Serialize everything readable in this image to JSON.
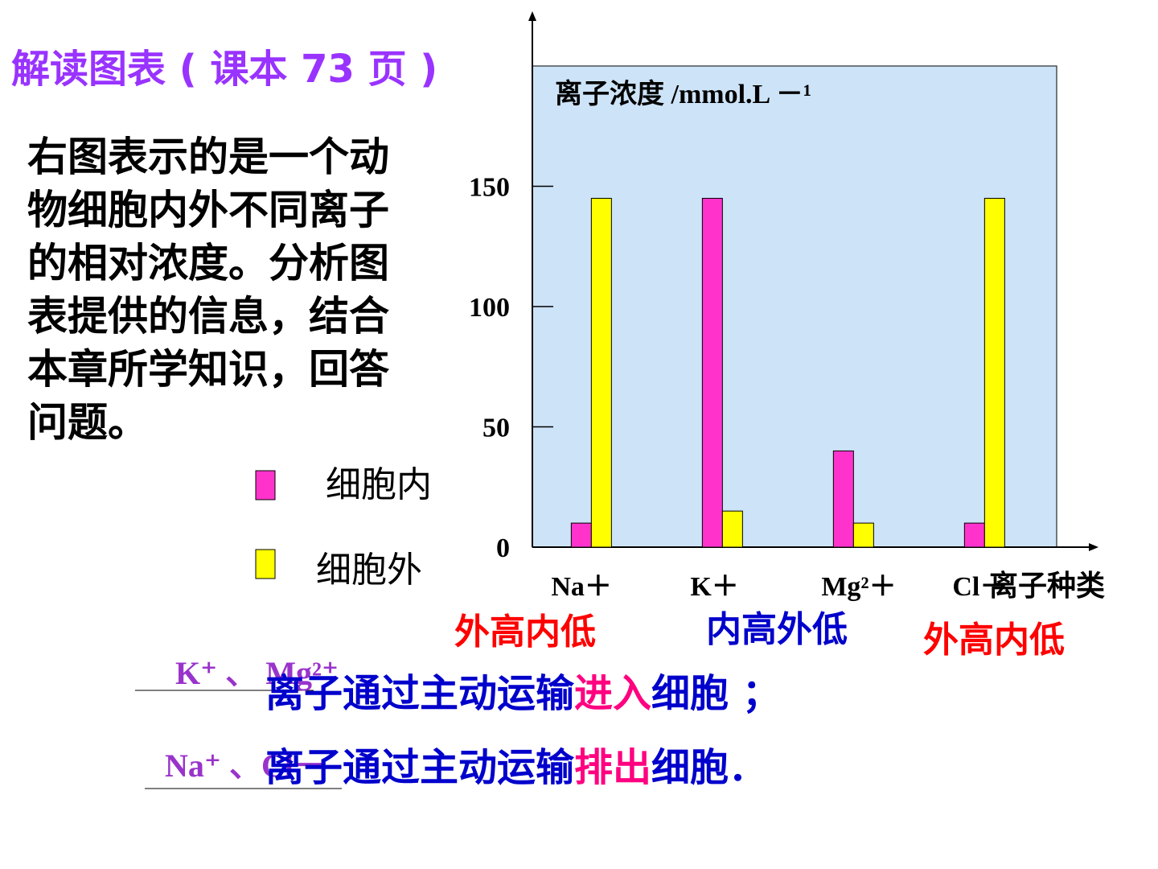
{
  "header": {
    "title": "解读图表 ( 课本 73 页 )"
  },
  "intro": [
    "右图表示的是一个动",
    "物细胞内外不同离子",
    "的相对浓度。分析图",
    "表提供的信息，结合",
    "本章所学知识，回答",
    "问题。"
  ],
  "chart_data": {
    "type": "bar",
    "y_label": "离子浓度 /mmol.L －¹",
    "x_label": "离子种类",
    "categories": [
      "Na＋",
      "K＋",
      "Mg²＋",
      "Cl－"
    ],
    "series": [
      {
        "name": "细胞内",
        "color": "#ff33cc",
        "values": [
          10,
          145,
          40,
          10
        ]
      },
      {
        "name": "细胞外",
        "color": "#ffff00",
        "values": [
          145,
          15,
          10,
          145
        ]
      }
    ],
    "ylim": [
      0,
      200
    ],
    "yticks": [
      0,
      50,
      100,
      150
    ],
    "annotations": [
      {
        "text": "外高内低",
        "color": "#ff0000"
      },
      {
        "text": "内高外低",
        "color": "#0000cc"
      },
      {
        "text": "外高内低",
        "color": "#ff0000"
      }
    ],
    "background": "#cde3f8"
  },
  "answers": [
    {
      "blank": "K⁺ 、 Mg²⁺",
      "parts": [
        "离子通过主动运输",
        "进入",
        "细胞 ；"
      ]
    },
    {
      "blank": "Na⁺ 、Cl－",
      "parts": [
        "离子通过主动运输",
        "排出",
        "细胞．"
      ]
    }
  ]
}
